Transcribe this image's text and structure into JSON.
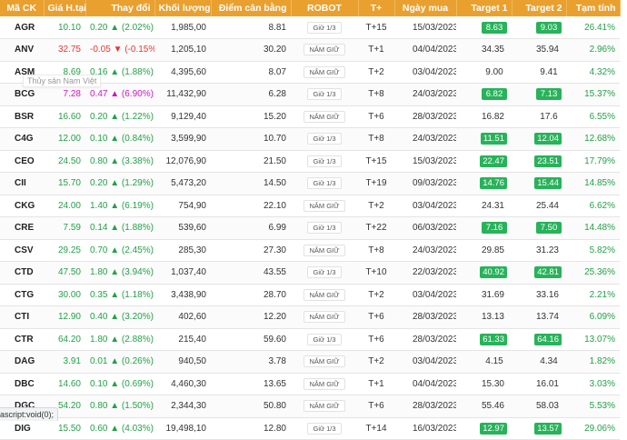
{
  "headers": {
    "code": "Mã CK",
    "price": "Giá H.tại",
    "change": "Thay đổi",
    "volume": "Khối lượng",
    "breakeven": "Điểm cân bằng",
    "robot": "ROBOT",
    "tplus": "T+",
    "buy_date": "Ngày mua",
    "target1": "Target 1",
    "target2": "Target 2",
    "pnl": "Tạm tính"
  },
  "rows": [
    {
      "code": "AGR",
      "price": "10.10",
      "change": "0.20 ▲ (2.02%)",
      "trend": "up",
      "volume": "1,985,00",
      "breakeven": "8.81",
      "robot": "Giữ 1/3",
      "tplus": "T+15",
      "buy_date": "15/03/2023",
      "target1": "8.63",
      "t1_hit": true,
      "target2": "9.03",
      "t2_hit": true,
      "pnl": "26.41%"
    },
    {
      "code": "ANV",
      "price": "32.75",
      "change": "-0.05 ▼ (-0.15%)",
      "trend": "down",
      "volume": "1,205,10",
      "breakeven": "30.20",
      "robot": "NẮM GIỮ",
      "tplus": "T+1",
      "buy_date": "04/04/2023",
      "target1": "34.35",
      "t1_hit": false,
      "target2": "35.94",
      "t2_hit": false,
      "pnl": "2.96%"
    },
    {
      "code": "ASM",
      "price": "8.69",
      "change": "0.16 ▲ (1.88%)",
      "trend": "up",
      "volume": "4,395,60",
      "breakeven": "8.07",
      "robot": "NẮM GIỮ",
      "tplus": "T+2",
      "buy_date": "03/04/2023",
      "target1": "9.00",
      "t1_hit": false,
      "target2": "9.41",
      "t2_hit": false,
      "pnl": "4.32%"
    },
    {
      "code": "BCG",
      "price": "7.28",
      "change": "0.47 ▲ (6.90%)",
      "trend": "ceil",
      "volume": "11,432,90",
      "breakeven": "6.28",
      "robot": "Giữ 1/3",
      "tplus": "T+8",
      "buy_date": "24/03/2023",
      "target1": "6.82",
      "t1_hit": true,
      "target2": "7.13",
      "t2_hit": true,
      "pnl": "15.37%"
    },
    {
      "code": "BSR",
      "price": "16.60",
      "change": "0.20 ▲ (1.22%)",
      "trend": "up",
      "volume": "9,129,40",
      "breakeven": "15.20",
      "robot": "NẮM GIỮ",
      "tplus": "T+6",
      "buy_date": "28/03/2023",
      "target1": "16.82",
      "t1_hit": false,
      "target2": "17.6",
      "t2_hit": false,
      "pnl": "6.55%"
    },
    {
      "code": "C4G",
      "price": "12.00",
      "change": "0.10 ▲ (0.84%)",
      "trend": "up",
      "volume": "3,599,90",
      "breakeven": "10.70",
      "robot": "Giữ 1/3",
      "tplus": "T+8",
      "buy_date": "24/03/2023",
      "target1": "11.51",
      "t1_hit": true,
      "target2": "12.04",
      "t2_hit": true,
      "pnl": "12.68%"
    },
    {
      "code": "CEO",
      "price": "24.50",
      "change": "0.80 ▲ (3.38%)",
      "trend": "up",
      "volume": "12,076,90",
      "breakeven": "21.50",
      "robot": "Giữ 1/3",
      "tplus": "T+15",
      "buy_date": "15/03/2023",
      "target1": "22.47",
      "t1_hit": true,
      "target2": "23.51",
      "t2_hit": true,
      "pnl": "17.79%"
    },
    {
      "code": "CII",
      "price": "15.70",
      "change": "0.20 ▲ (1.29%)",
      "trend": "up",
      "volume": "5,473,20",
      "breakeven": "14.50",
      "robot": "Giữ 1/3",
      "tplus": "T+19",
      "buy_date": "09/03/2023",
      "target1": "14.76",
      "t1_hit": true,
      "target2": "15.44",
      "t2_hit": true,
      "pnl": "14.85%"
    },
    {
      "code": "CKG",
      "price": "24.00",
      "change": "1.40 ▲ (6.19%)",
      "trend": "up",
      "volume": "754,90",
      "breakeven": "22.10",
      "robot": "NẮM GIỮ",
      "tplus": "T+2",
      "buy_date": "03/04/2023",
      "target1": "24.31",
      "t1_hit": false,
      "target2": "25.44",
      "t2_hit": false,
      "pnl": "6.62%"
    },
    {
      "code": "CRE",
      "price": "7.59",
      "change": "0.14 ▲ (1.88%)",
      "trend": "up",
      "volume": "539,60",
      "breakeven": "6.99",
      "robot": "Giữ 1/3",
      "tplus": "T+22",
      "buy_date": "06/03/2023",
      "target1": "7.16",
      "t1_hit": true,
      "target2": "7.50",
      "t2_hit": true,
      "pnl": "14.48%"
    },
    {
      "code": "CSV",
      "price": "29.25",
      "change": "0.70 ▲ (2.45%)",
      "trend": "up",
      "volume": "285,30",
      "breakeven": "27.30",
      "robot": "NẮM GIỮ",
      "tplus": "T+8",
      "buy_date": "24/03/2023",
      "target1": "29.85",
      "t1_hit": false,
      "target2": "31.23",
      "t2_hit": false,
      "pnl": "5.82%"
    },
    {
      "code": "CTD",
      "price": "47.50",
      "change": "1.80 ▲ (3.94%)",
      "trend": "up",
      "volume": "1,037,40",
      "breakeven": "43.55",
      "robot": "Giữ 1/3",
      "tplus": "T+10",
      "buy_date": "22/03/2023",
      "target1": "40.92",
      "t1_hit": true,
      "target2": "42.81",
      "t2_hit": true,
      "pnl": "25.36%"
    },
    {
      "code": "CTG",
      "price": "30.00",
      "change": "0.35 ▲ (1.18%)",
      "trend": "up",
      "volume": "3,438,90",
      "breakeven": "28.70",
      "robot": "NẮM GIỮ",
      "tplus": "T+2",
      "buy_date": "03/04/2023",
      "target1": "31.69",
      "t1_hit": false,
      "target2": "33.16",
      "t2_hit": false,
      "pnl": "2.21%"
    },
    {
      "code": "CTI",
      "price": "12.90",
      "change": "0.40 ▲ (3.20%)",
      "trend": "up",
      "volume": "402,60",
      "breakeven": "12.20",
      "robot": "NẮM GIỮ",
      "tplus": "T+6",
      "buy_date": "28/03/2023",
      "target1": "13.13",
      "t1_hit": false,
      "target2": "13.74",
      "t2_hit": false,
      "pnl": "6.09%"
    },
    {
      "code": "CTR",
      "price": "64.20",
      "change": "1.80 ▲ (2.88%)",
      "trend": "up",
      "volume": "215,40",
      "breakeven": "59.60",
      "robot": "Giữ 1/3",
      "tplus": "T+6",
      "buy_date": "28/03/2023",
      "target1": "61.33",
      "t1_hit": true,
      "target2": "64.16",
      "t2_hit": true,
      "pnl": "13.07%"
    },
    {
      "code": "DAG",
      "price": "3.91",
      "change": "0.01 ▲ (0.26%)",
      "trend": "up",
      "volume": "940,50",
      "breakeven": "3.78",
      "robot": "NẮM GIỮ",
      "tplus": "T+2",
      "buy_date": "03/04/2023",
      "target1": "4.15",
      "t1_hit": false,
      "target2": "4.34",
      "t2_hit": false,
      "pnl": "1.82%"
    },
    {
      "code": "DBC",
      "price": "14.60",
      "change": "0.10 ▲ (0.69%)",
      "trend": "up",
      "volume": "4,460,30",
      "breakeven": "13.65",
      "robot": "NẮM GIỮ",
      "tplus": "T+1",
      "buy_date": "04/04/2023",
      "target1": "15.30",
      "t1_hit": false,
      "target2": "16.01",
      "t2_hit": false,
      "pnl": "3.03%"
    },
    {
      "code": "DGC",
      "price": "54.20",
      "change": "0.80 ▲ (1.50%)",
      "trend": "up",
      "volume": "2,344,30",
      "breakeven": "50.80",
      "robot": "NẮM GIỮ",
      "tplus": "T+6",
      "buy_date": "28/03/2023",
      "target1": "55.46",
      "t1_hit": false,
      "target2": "58.03",
      "t2_hit": false,
      "pnl": "5.53%"
    },
    {
      "code": "DIG",
      "price": "15.50",
      "change": "0.60 ▲ (4.03%)",
      "trend": "up",
      "volume": "19,498,10",
      "breakeven": "12.80",
      "robot": "Giữ 1/3",
      "tplus": "T+14",
      "buy_date": "16/03/2023",
      "target1": "12.97",
      "t1_hit": true,
      "target2": "13.57",
      "t2_hit": true,
      "pnl": "29.06%"
    }
  ],
  "tooltip": "Thủy sản Nam Việt",
  "status_bar": "ascript:void(0);",
  "colors": {
    "header_bg": "#e9a02f",
    "up": "#24a148",
    "down": "#e53935",
    "ceiling": "#d016c8",
    "target_hit_bg": "#27b35a"
  }
}
